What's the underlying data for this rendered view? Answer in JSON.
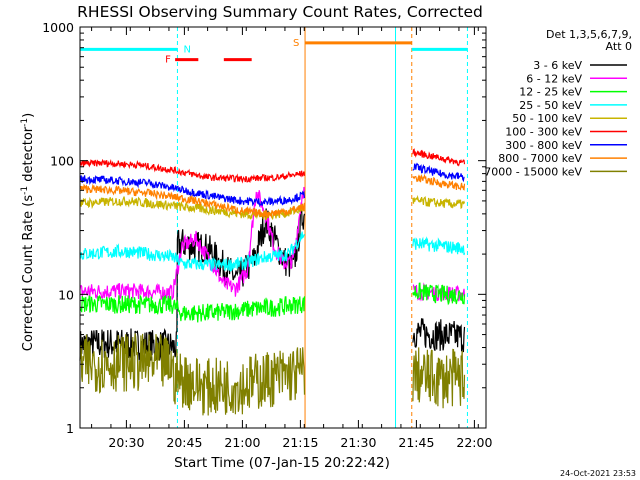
{
  "chart_data": {
    "type": "line",
    "title": "RHESSI Observing Summary Count Rates, Corrected",
    "xlabel": "Start Time (07-Jan-15 20:22:42)",
    "ylabel": "Corrected Count Rate (s⁻¹ detector⁻¹)",
    "ylabel_parts": [
      "Corrected Count Rate (s",
      "-1",
      " detector",
      "-1",
      ")"
    ],
    "y_scale": "log",
    "ylim": [
      1,
      1000
    ],
    "xlim_minutes": [
      20.3,
      22.05
    ],
    "x_tick_labels": [
      "20:30",
      "20:45",
      "21:00",
      "21:15",
      "21:30",
      "21:45",
      "22:00"
    ],
    "x_tick_minutes": [
      20.5,
      20.75,
      21.0,
      21.25,
      21.5,
      21.75,
      22.0
    ],
    "y_tick_labels": [
      "1",
      "10",
      "100",
      "1000"
    ],
    "y_tick_values": [
      1,
      10,
      100,
      1000
    ],
    "legend_title": [
      "Det 1,3,5,6,7,9,",
      "Att 0"
    ],
    "legend_position": "right",
    "timestamp": "24-Oct-2021 23:53",
    "annotations": [
      {
        "label": "N",
        "color": "#00ffff"
      },
      {
        "label": "F",
        "color": "#ff0000"
      },
      {
        "label": "S",
        "color": "#ff8000"
      }
    ],
    "flag_bars": [
      {
        "name": "night",
        "color": "#00ffff",
        "value": 680,
        "x": [
          [
            20.3,
            20.72
          ],
          [
            21.73,
            21.97
          ]
        ]
      },
      {
        "name": "flare",
        "color": "#ff0000",
        "value": 570,
        "x": [
          [
            20.71,
            20.81
          ],
          [
            20.92,
            21.04
          ]
        ]
      },
      {
        "name": "saa",
        "color": "#ff8000",
        "value": 760,
        "x": [
          [
            21.27,
            21.73
          ]
        ]
      }
    ],
    "vertical_lines": [
      {
        "x": 20.3,
        "color": "#00ffff",
        "style": "solid"
      },
      {
        "x": 20.72,
        "color": "#00ffff",
        "style": "dashed"
      },
      {
        "x": 21.27,
        "color": "#ff8000",
        "style": "solid"
      },
      {
        "x": 21.66,
        "color": "#00ffff",
        "style": "solid"
      },
      {
        "x": 21.73,
        "color": "#ff8000",
        "style": "dashed"
      },
      {
        "x": 21.97,
        "color": "#00ffff",
        "style": "dashed"
      }
    ],
    "series": [
      {
        "name": "3 - 6 keV",
        "color": "#000000",
        "x": [
          20.3,
          20.42,
          20.55,
          20.7,
          20.72,
          20.74,
          20.85,
          20.92,
          20.98,
          21.05,
          21.1,
          21.18,
          21.22,
          21.26,
          21.74,
          21.82,
          21.96
        ],
        "y": [
          4.2,
          4.3,
          4.2,
          4.1,
          4.0,
          24,
          22,
          16,
          13,
          18,
          36,
          18,
          16,
          40,
          5.2,
          5.0,
          4.8
        ]
      },
      {
        "name": "6 - 12 keV",
        "color": "#ff00ff",
        "x": [
          20.3,
          20.5,
          20.7,
          20.74,
          20.8,
          20.86,
          20.92,
          20.97,
          21.02,
          21.06,
          21.1,
          21.14,
          21.18,
          21.22,
          21.26,
          21.74,
          21.85,
          21.96
        ],
        "y": [
          10.5,
          10.6,
          10.3,
          23,
          26,
          18,
          12,
          11,
          15,
          60,
          40,
          22,
          17,
          18,
          60,
          10.5,
          10.2,
          10.0
        ]
      },
      {
        "name": "12 - 25 keV",
        "color": "#00ff00",
        "x": [
          20.3,
          20.5,
          20.7,
          20.74,
          20.9,
          21.05,
          21.15,
          21.26,
          21.74,
          21.85,
          21.96
        ],
        "y": [
          8.5,
          8.4,
          8.3,
          7.2,
          7.3,
          7.8,
          8.0,
          8.5,
          10.5,
          10.0,
          9.8
        ]
      },
      {
        "name": "25 - 50 keV",
        "color": "#00ffff",
        "x": [
          20.3,
          20.5,
          20.7,
          20.74,
          20.9,
          21.0,
          21.1,
          21.2,
          21.26,
          21.74,
          21.85,
          21.96
        ],
        "y": [
          20,
          21,
          19,
          17,
          16.5,
          17,
          19,
          20,
          28,
          24,
          23,
          22
        ]
      },
      {
        "name": "50 - 100 keV",
        "color": "#c8b400",
        "x": [
          20.3,
          20.5,
          20.7,
          20.9,
          21.0,
          21.1,
          21.2,
          21.26,
          21.74,
          21.85,
          21.96
        ],
        "y": [
          48,
          50,
          46,
          42,
          40,
          39,
          41,
          44,
          50,
          48,
          47
        ]
      },
      {
        "name": "100 - 300 keV",
        "color": "#ff0000",
        "x": [
          20.3,
          20.4,
          20.55,
          20.7,
          20.85,
          21.0,
          21.15,
          21.26,
          21.74,
          21.85,
          21.96
        ],
        "y": [
          95,
          96,
          93,
          85,
          75,
          73,
          75,
          80,
          115,
          105,
          95
        ]
      },
      {
        "name": "300 - 800 keV",
        "color": "#0000ff",
        "x": [
          20.3,
          20.45,
          20.6,
          20.75,
          20.9,
          21.0,
          21.1,
          21.2,
          21.26,
          21.74,
          21.85,
          21.96
        ],
        "y": [
          73,
          71,
          68,
          60,
          53,
          50,
          49,
          51,
          55,
          90,
          80,
          75
        ]
      },
      {
        "name": "800 - 7000 keV",
        "color": "#ff8000",
        "x": [
          20.3,
          20.45,
          20.6,
          20.75,
          20.9,
          21.0,
          21.1,
          21.2,
          21.26,
          21.74,
          21.85,
          21.96
        ],
        "y": [
          62,
          60,
          57,
          52,
          46,
          42,
          40,
          42,
          45,
          75,
          68,
          63
        ]
      },
      {
        "name": "7000 - 15000 keV",
        "color": "#808000",
        "x": [
          20.3,
          20.5,
          20.7,
          20.72,
          20.85,
          21.0,
          21.1,
          21.2,
          21.26,
          21.74,
          21.85,
          21.96
        ],
        "y": [
          3.0,
          3.1,
          3.0,
          2.4,
          2.0,
          2.1,
          2.3,
          2.5,
          2.6,
          2.5,
          2.3,
          2.4
        ]
      }
    ]
  }
}
